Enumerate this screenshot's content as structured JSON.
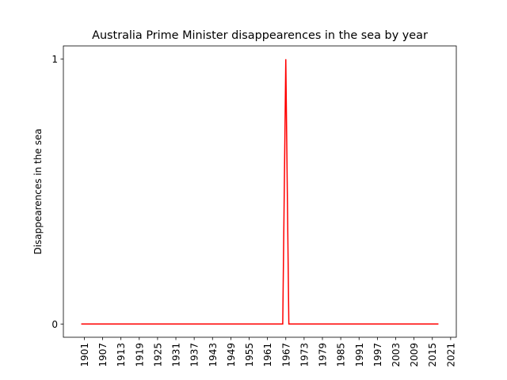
{
  "chart_data": {
    "type": "line",
    "title": "Australia Prime Minister disappearences in the sea by year",
    "y_label": "Disappearences in the sea",
    "x": [
      1900,
      1966,
      1967,
      1968,
      2017
    ],
    "values": [
      0,
      0,
      1,
      0,
      0
    ],
    "color": "#ff0000",
    "xlim": [
      1894.15,
      2022.85
    ],
    "xticks": [
      1901,
      1907,
      1913,
      1919,
      1925,
      1931,
      1937,
      1943,
      1949,
      1955,
      1961,
      1967,
      1973,
      1979,
      1985,
      1991,
      1997,
      2003,
      2009,
      2015,
      2021
    ],
    "ylim": [
      -0.05,
      1.05
    ],
    "yticks": [
      0,
      1
    ],
    "grid": false
  }
}
